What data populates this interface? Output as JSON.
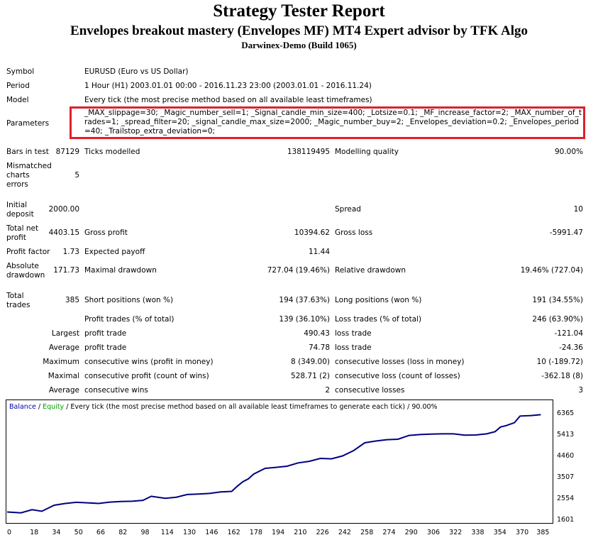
{
  "header": {
    "title": "Strategy Tester Report",
    "subtitle": "Envelopes breakout mastery (Envelopes MF) MT4 Expert advisor by TFK Algo",
    "server": "Darwinex-Demo (Build 1065)"
  },
  "info": {
    "symbol_label": "Symbol",
    "symbol_value": "EURUSD (Euro vs US Dollar)",
    "period_label": "Period",
    "period_value": "1 Hour (H1) 2003.01.01 00:00 - 2016.11.23 23:00 (2003.01.01 - 2016.11.24)",
    "model_label": "Model",
    "model_value": "Every tick (the most precise method based on all available least timeframes)",
    "parameters_label": "Parameters",
    "parameters_value": "_MAX_slippage=30; _Magic_number_sell=1; _Signal_candle_min_size=400; _Lotsize=0.1; _MF_increase_factor=2; _MAX_number_of_trades=1; _spread_filter=20; _signal_candle_max_size=2000; _Magic_number_buy=2; _Envelopes_deviation=0.2; _Envelopes_period=40; _Trailstop_extra_deviation=0;"
  },
  "stats": {
    "bars_label": "Bars in test",
    "bars_value": "87129",
    "ticks_label": "Ticks modelled",
    "ticks_value": "138119495",
    "quality_label": "Modelling quality",
    "quality_value": "90.00%",
    "mismatch_label_1": "Mismatched",
    "mismatch_label_2": "charts",
    "mismatch_label_3": "errors",
    "mismatch_value": "5",
    "deposit_label_1": "Initial",
    "deposit_label_2": "deposit",
    "deposit_value": "2000.00",
    "spread_label": "Spread",
    "spread_value": "10",
    "netprofit_label_1": "Total net",
    "netprofit_label_2": "profit",
    "netprofit_value": "4403.15",
    "grossprofit_label": "Gross profit",
    "grossprofit_value": "10394.62",
    "grossloss_label": "Gross loss",
    "grossloss_value": "-5991.47",
    "pf_label": "Profit factor",
    "pf_value": "1.73",
    "payoff_label": "Expected payoff",
    "payoff_value": "11.44",
    "absdd_label_1": "Absolute",
    "absdd_label_2": "drawdown",
    "absdd_value": "171.73",
    "maxdd_label": "Maximal drawdown",
    "maxdd_value": "727.04 (19.46%)",
    "reldd_label": "Relative drawdown",
    "reldd_value": "19.46% (727.04)",
    "trades_label_1": "Total",
    "trades_label_2": "trades",
    "trades_value": "385",
    "short_label": "Short positions (won %)",
    "short_value": "194 (37.63%)",
    "long_label": "Long positions (won %)",
    "long_value": "191 (34.55%)",
    "ptrades_label": "Profit trades (% of total)",
    "ptrades_value": "139 (36.10%)",
    "ltrades_label": "Loss trades (% of total)",
    "ltrades_value": "246 (63.90%)",
    "largest_label": "Largest",
    "largest_profit_label": "profit trade",
    "largest_profit_value": "490.43",
    "largest_loss_label": "loss trade",
    "largest_loss_value": "-121.04",
    "average_label": "Average",
    "average_profit_label": "profit trade",
    "average_profit_value": "74.78",
    "average_loss_label": "loss trade",
    "average_loss_value": "-24.36",
    "maximum_label": "Maximum",
    "max_cwins_label": "consecutive wins (profit in money)",
    "max_cwins_value": "8 (349.00)",
    "max_closs_label": "consecutive losses (loss in money)",
    "max_closs_value": "10 (-189.72)",
    "maximal_label": "Maximal",
    "maximal_cprofit_label": "consecutive profit (count of wins)",
    "maximal_cprofit_value": "528.71 (2)",
    "maximal_closs_label": "consecutive loss (count of losses)",
    "maximal_closs_value": "-362.18 (8)",
    "average2_label": "Average",
    "avg_cwins_label": "consecutive wins",
    "avg_cwins_value": "2",
    "avg_closs_label": "consecutive losses",
    "avg_closs_value": "3"
  },
  "chart_legend": {
    "balance": "Balance",
    "sep1": " / ",
    "equity": "Equity",
    "rest": " / Every tick (the most precise method based on all available least timeframes to generate each tick) / 90.00%"
  },
  "chart_data": {
    "type": "line",
    "xlim": [
      0,
      393
    ],
    "ylim": [
      1601,
      6690
    ],
    "yticks": [
      "6365",
      "5413",
      "4460",
      "3507",
      "2554",
      "1601"
    ],
    "xticks": [
      "0",
      "18",
      "34",
      "50",
      "66",
      "82",
      "98",
      "114",
      "130",
      "146",
      "162",
      "178",
      "194",
      "210",
      "226",
      "242",
      "258",
      "274",
      "290",
      "306",
      "322",
      "338",
      "354",
      "370",
      "385"
    ],
    "series": [
      {
        "name": "Balance",
        "color": "#000080",
        "x": [
          0,
          10,
          18,
          25,
          34,
          42,
          50,
          58,
          66,
          74,
          82,
          90,
          98,
          104,
          114,
          122,
          130,
          138,
          146,
          154,
          162,
          166,
          170,
          174,
          178,
          186,
          194,
          202,
          210,
          218,
          226,
          234,
          242,
          250,
          258,
          266,
          274,
          282,
          290,
          298,
          306,
          314,
          322,
          330,
          338,
          346,
          352,
          356,
          360,
          366,
          370,
          378,
          385
        ],
        "y": [
          2000,
          1960,
          2100,
          2030,
          2300,
          2380,
          2430,
          2410,
          2380,
          2440,
          2470,
          2480,
          2520,
          2700,
          2610,
          2660,
          2780,
          2800,
          2830,
          2900,
          2920,
          3150,
          3350,
          3480,
          3700,
          3950,
          4000,
          4050,
          4200,
          4270,
          4400,
          4380,
          4510,
          4750,
          5100,
          5180,
          5240,
          5260,
          5430,
          5470,
          5490,
          5500,
          5500,
          5440,
          5450,
          5500,
          5600,
          5810,
          5870,
          6000,
          6300,
          6320,
          6360
        ]
      }
    ]
  }
}
